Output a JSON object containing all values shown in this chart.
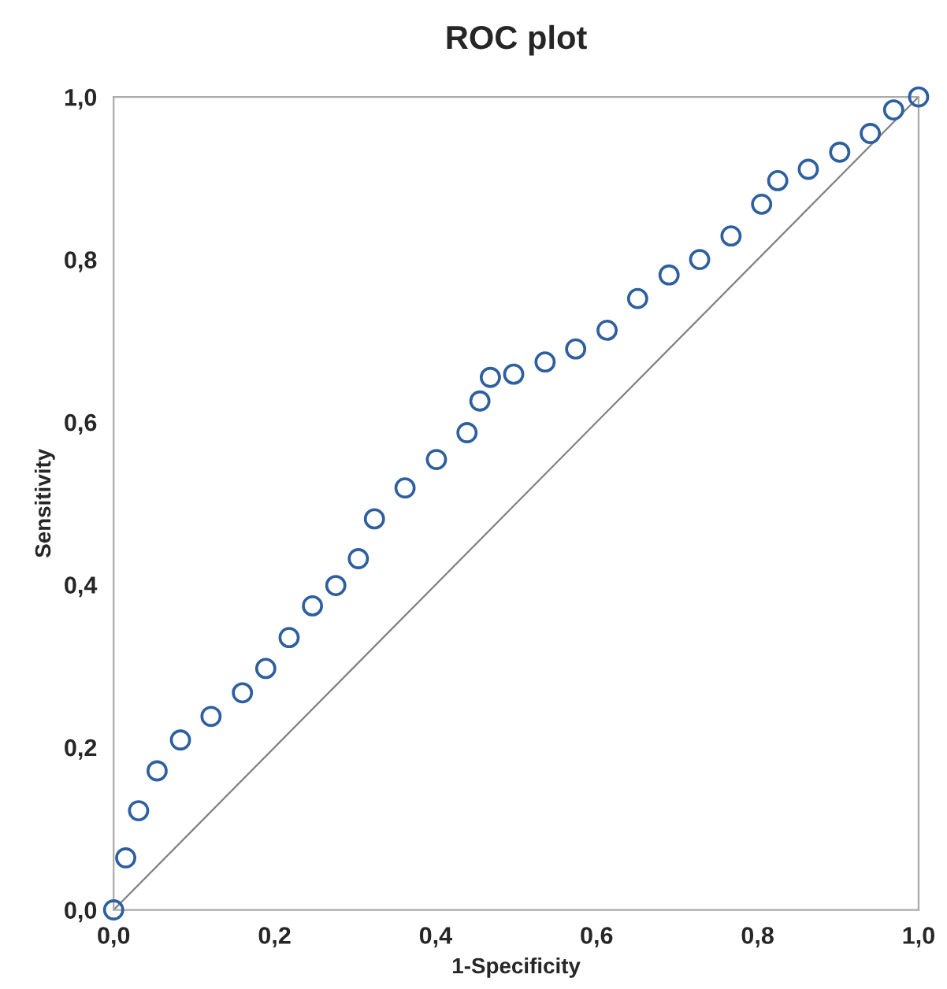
{
  "chart_data": {
    "type": "scatter",
    "title": "ROC plot",
    "xlabel": "1-Specificity",
    "ylabel": "Sensitivity",
    "grid": false,
    "xlim": [
      0,
      1
    ],
    "ylim": [
      0,
      1
    ],
    "xticks": [
      {
        "value": 0,
        "label": "0,0"
      },
      {
        "value": 0.2,
        "label": "0,2"
      },
      {
        "value": 0.4,
        "label": "0,4"
      },
      {
        "value": 0.6,
        "label": "0,6"
      },
      {
        "value": 0.8,
        "label": "0,8"
      },
      {
        "value": 1,
        "label": "1,0"
      }
    ],
    "yticks": [
      {
        "value": 0,
        "label": "0,0"
      },
      {
        "value": 0.2,
        "label": "0,2"
      },
      {
        "value": 0.4,
        "label": "0,4"
      },
      {
        "value": 0.6,
        "label": "0,6"
      },
      {
        "value": 0.8,
        "label": "0,8"
      },
      {
        "value": 1,
        "label": "1,0"
      }
    ],
    "series": [
      {
        "marker": "circle",
        "color": "#2e5f9e",
        "x": [
          0,
          0.015,
          0.031,
          0.054,
          0.083,
          0.121,
          0.16,
          0.189,
          0.218,
          0.247,
          0.276,
          0.304,
          0.324,
          0.362,
          0.401,
          0.439,
          0.455,
          0.468,
          0.497,
          0.536,
          0.574,
          0.613,
          0.651,
          0.69,
          0.728,
          0.767,
          0.805,
          0.825,
          0.863,
          0.902,
          0.94,
          0.969,
          1
        ],
        "values": [
          0,
          0.064,
          0.122,
          0.171,
          0.209,
          0.238,
          0.267,
          0.297,
          0.335,
          0.374,
          0.399,
          0.432,
          0.481,
          0.519,
          0.554,
          0.587,
          0.626,
          0.655,
          0.659,
          0.674,
          0.69,
          0.713,
          0.752,
          0.781,
          0.8,
          0.829,
          0.868,
          0.897,
          0.911,
          0.932,
          0.955,
          0.984,
          1
        ]
      },
      {
        "type": "line",
        "marker": "none",
        "color": "#808080",
        "x": [
          0,
          1
        ],
        "values": [
          0,
          1
        ]
      }
    ]
  }
}
